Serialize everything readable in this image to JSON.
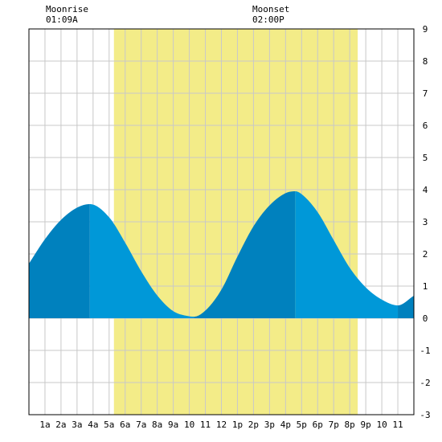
{
  "moon": {
    "rise_label": "Moonrise",
    "rise_time": "01:09A",
    "set_label": "Moonset",
    "set_time": "02:00P"
  },
  "colors": {
    "daylight": "#f3ec88",
    "tide_fill": "#0098d8",
    "tide_rising_fill": "#0081be",
    "grid": "#c8c8c8",
    "axis": "#000000"
  },
  "chart_data": {
    "type": "area",
    "title": "",
    "xlabel": "",
    "ylabel": "",
    "xlim": [
      0,
      24
    ],
    "ylim": [
      -3,
      9
    ],
    "grid": true,
    "x_tick_labels": [
      "1a",
      "2a",
      "3a",
      "4a",
      "5a",
      "6a",
      "7a",
      "8a",
      "9a",
      "10",
      "11",
      "12",
      "1p",
      "2p",
      "3p",
      "4p",
      "5p",
      "6p",
      "7p",
      "8p",
      "9p",
      "10",
      "11"
    ],
    "y_tick_labels": [
      "-3",
      "-2",
      "-1",
      "0",
      "1",
      "2",
      "3",
      "4",
      "5",
      "6",
      "7",
      "8",
      "9"
    ],
    "daylight_hours": [
      5.3,
      20.5
    ],
    "extremes": [
      {
        "hour": 3.8,
        "height": 3.55,
        "kind": "high"
      },
      {
        "hour": 10.3,
        "height": 0.05,
        "kind": "low"
      },
      {
        "hour": 16.6,
        "height": 3.95,
        "kind": "high"
      },
      {
        "hour": 23.0,
        "height": 0.4,
        "kind": "low"
      }
    ],
    "series": [
      {
        "x": [
          0,
          1,
          2,
          3,
          3.8,
          5,
          6,
          7,
          8,
          9,
          10,
          10.3,
          11,
          12,
          13,
          14,
          15,
          16,
          16.6,
          17,
          18,
          19,
          20,
          21,
          22,
          23,
          24
        ],
        "values": [
          1.7,
          2.46,
          3.06,
          3.44,
          3.55,
          3.14,
          2.35,
          1.46,
          0.71,
          0.22,
          0.06,
          0.05,
          0.24,
          0.89,
          1.92,
          2.86,
          3.51,
          3.89,
          3.95,
          3.86,
          3.3,
          2.43,
          1.57,
          0.96,
          0.58,
          0.4,
          0.7
        ]
      }
    ]
  }
}
